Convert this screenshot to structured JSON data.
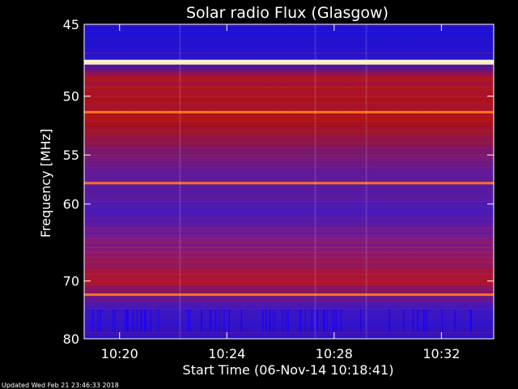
{
  "chart_data": {
    "type": "heatmap",
    "title": "Solar radio Flux (Glasgow)",
    "xlabel": "Start Time (06-Nov-14 10:18:41)",
    "ylabel": "Frequency [MHz]",
    "x_ticks": [
      "10:20",
      "10:24",
      "10:28",
      "10:32"
    ],
    "x_tick_minutes": [
      20,
      24,
      28,
      32
    ],
    "y_ticks": [
      45,
      50,
      55,
      60,
      70,
      80
    ],
    "y_scale": "reciprocal",
    "xlim_minutes": [
      18.68,
      33.95
    ],
    "ylim_mhz": [
      45,
      80
    ],
    "gaps_minutes": [
      22.25,
      27.3,
      29.2
    ],
    "bright_lines": [
      {
        "label": "47.5 MHz band",
        "mhz": 47.5
      },
      {
        "label": "51.3 MHz band",
        "mhz": 51.3
      },
      {
        "label": "57.8 MHz band",
        "mhz": 57.8
      },
      {
        "label": "72.2 MHz band",
        "mhz": 72.2
      }
    ],
    "colors": {
      "low": "#1a00e6",
      "mid": "#7a1aa0",
      "high": "#c8141e",
      "peak": "#fff0c8"
    }
  },
  "footer": {
    "updated": "Updated Wed Feb 21 23:46:33 2018"
  }
}
